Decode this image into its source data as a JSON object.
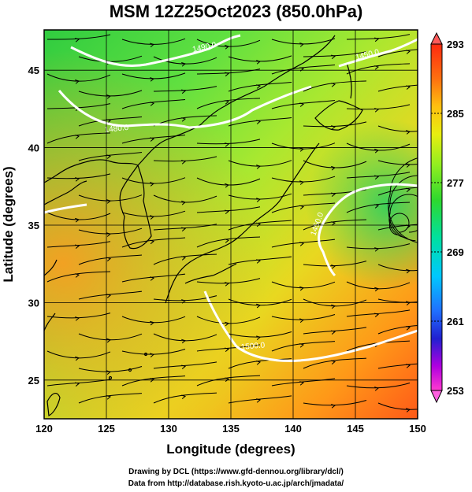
{
  "title": "MSM 12Z25Oct2023 (850.0hPa)",
  "x_axis": {
    "label": "Longitude (degrees)",
    "ticks": [
      "120",
      "125",
      "130",
      "135",
      "140",
      "145",
      "150"
    ],
    "range": [
      120,
      150
    ]
  },
  "y_axis": {
    "label": "Latitude  (degrees)",
    "ticks": [
      "25",
      "30",
      "35",
      "40",
      "45"
    ],
    "range": [
      22.5,
      47.6
    ]
  },
  "colorbar": {
    "ticks": [
      "293",
      "285",
      "277",
      "269",
      "261",
      "253"
    ],
    "range": [
      253,
      293
    ],
    "colors": [
      "#ff3ad0",
      "#b000e0",
      "#2020d0",
      "#2070ff",
      "#00c8ff",
      "#00e0a0",
      "#2ed82e",
      "#90ee20",
      "#e8ee10",
      "#ffc010",
      "#ff7010",
      "#ff2a10"
    ]
  },
  "contours": {
    "labels": [
      "1490.0",
      "1450.0",
      "1480.0",
      "1450.0",
      "1500.0",
      "1520.0"
    ],
    "color": "#ffffff"
  },
  "grid": true,
  "credits": {
    "line1": "Drawing by DCL (https://www.gfd-dennou.org/library/dcl/)",
    "line2": "Data from http://database.rish.kyoto-u.ac.jp/arch/jmadata/"
  }
}
